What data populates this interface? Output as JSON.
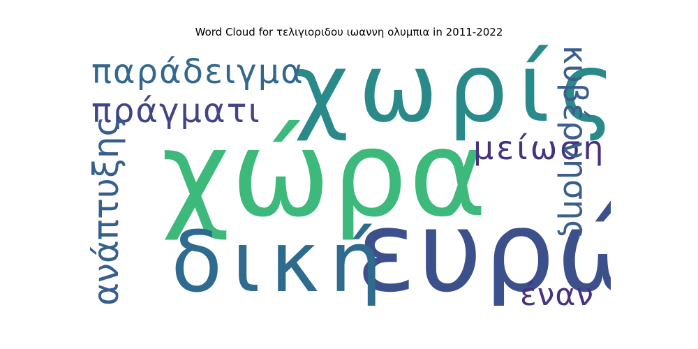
{
  "title": "Word Cloud for τελιγιοριδου ιωαννη ολυμπια in 2011-2022",
  "words": [
    {
      "text": "χώρα",
      "color": "#3dba7b"
    },
    {
      "text": "χωρίς",
      "color": "#2a8a8a"
    },
    {
      "text": "ευρώ",
      "color": "#3c508b"
    },
    {
      "text": "δική",
      "color": "#2e6b8e"
    },
    {
      "text": "παράδειγμα",
      "color": "#33688e"
    },
    {
      "text": "πράγματι",
      "color": "#414487"
    },
    {
      "text": "μείωση",
      "color": "#46327e"
    },
    {
      "text": "κυβέρνησης",
      "color": "#3b5e8c"
    },
    {
      "text": "ανάπτυξης",
      "color": "#355f8d"
    },
    {
      "text": "έναν",
      "color": "#46327e"
    }
  ]
}
